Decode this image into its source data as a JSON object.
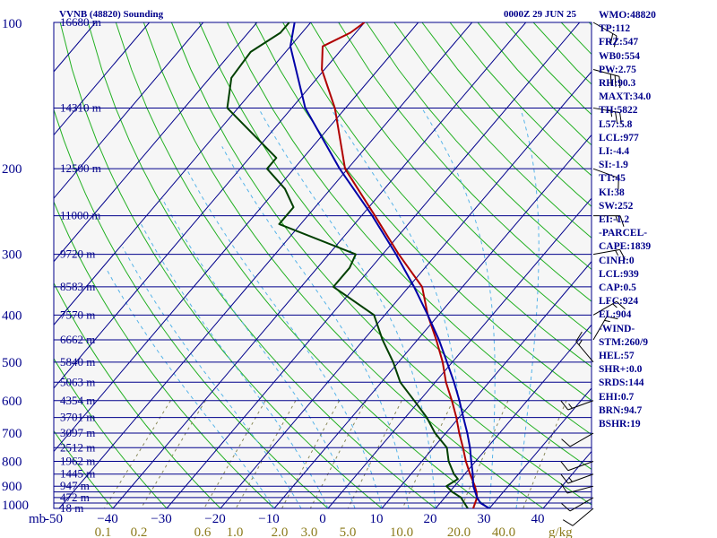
{
  "header": {
    "station": "VVNB (48820) Sounding",
    "time": "0000Z 29 JUN 25"
  },
  "stats": [
    "WMO:48820",
    "TP:112",
    "FRZ:547",
    "WB0:554",
    "PW:2.75",
    "RH:90.3",
    "MAXT:34.0",
    "TH:5822",
    "L57:5.8",
    "LCL:977",
    "LI:-4.4",
    "SI:-1.9",
    "TT:45",
    "KI:38",
    "SW:252",
    "EI:-1.2",
    "-PARCEL-",
    "CAPE:1839",
    "CINH:0",
    "LCL:939",
    "CAP:0.5",
    "LFC:924",
    "EL:904",
    "-WIND-",
    "STM:260/9",
    "HEL:57",
    "SHR+:0.0",
    "SRDS:144",
    "EHI:0.7",
    "BRN:94.7",
    "BSHR:19"
  ],
  "chart_data": {
    "type": "line",
    "title": "VVNB (48820) Sounding",
    "pressure_axis": {
      "unit_label": "mb",
      "ticks": [
        {
          "p": 100,
          "label": "100"
        },
        {
          "p": 200,
          "label": "200"
        },
        {
          "p": 300,
          "label": "300"
        },
        {
          "p": 400,
          "label": "400"
        },
        {
          "p": 500,
          "label": "500"
        },
        {
          "p": 600,
          "label": "600"
        },
        {
          "p": 700,
          "label": "700"
        },
        {
          "p": 800,
          "label": "800"
        },
        {
          "p": 900,
          "label": "900"
        },
        {
          "p": 1000,
          "label": "1000"
        }
      ]
    },
    "isobars": [
      100,
      150,
      200,
      250,
      300,
      350,
      400,
      450,
      500,
      550,
      600,
      650,
      700,
      750,
      800,
      850,
      900,
      925,
      950,
      975,
      1000
    ],
    "height_labels": [
      {
        "p": 100,
        "label": "16680 m"
      },
      {
        "p": 150,
        "label": "14310 m"
      },
      {
        "p": 200,
        "label": "12500 m"
      },
      {
        "p": 250,
        "label": "11000 m"
      },
      {
        "p": 300,
        "label": "9720 m"
      },
      {
        "p": 350,
        "label": "8583 m"
      },
      {
        "p": 400,
        "label": "7570 m"
      },
      {
        "p": 450,
        "label": "6662 m"
      },
      {
        "p": 500,
        "label": "5840 m"
      },
      {
        "p": 550,
        "label": "5063 m"
      },
      {
        "p": 600,
        "label": "4354 m"
      },
      {
        "p": 650,
        "label": "3701 m"
      },
      {
        "p": 700,
        "label": "3097 m"
      },
      {
        "p": 750,
        "label": "2512 m"
      },
      {
        "p": 800,
        "label": "1962 m"
      },
      {
        "p": 850,
        "label": "1445 m"
      },
      {
        "p": 900,
        "label": "947 m"
      },
      {
        "p": 950,
        "label": "472 m"
      },
      {
        "p": 1000,
        "label": "18 m"
      }
    ],
    "temperature_ticks": [
      {
        "t": -50,
        "label": "-50"
      },
      {
        "t": -40,
        "label": "−40"
      },
      {
        "t": -30,
        "label": "−30"
      },
      {
        "t": -20,
        "label": "−20"
      },
      {
        "t": -10,
        "label": "−10"
      },
      {
        "t": 0,
        "label": "0"
      },
      {
        "t": 10,
        "label": "10"
      },
      {
        "t": 20,
        "label": "20"
      },
      {
        "t": 30,
        "label": "30"
      },
      {
        "t": 40,
        "label": "40"
      }
    ],
    "mixing_ratio_axis": {
      "unit_label": "g/kg",
      "ticks": [
        {
          "w": 0.1,
          "label": "0.1"
        },
        {
          "w": 0.2,
          "label": "0.2"
        },
        {
          "w": 0.6,
          "label": "0.6"
        },
        {
          "w": 1.0,
          "label": "1.0"
        },
        {
          "w": 2.0,
          "label": "2.0"
        },
        {
          "w": 3.0,
          "label": "3.0"
        },
        {
          "w": 5.0,
          "label": "5.0"
        },
        {
          "w": 10.0,
          "label": "10.0"
        },
        {
          "w": 20.0,
          "label": "20.0"
        },
        {
          "w": 40.0,
          "label": "40.0"
        }
      ]
    },
    "series": [
      {
        "key": "temperature",
        "color": "#b00000",
        "points": [
          [
            1000,
            27.0
          ],
          [
            975,
            26.5
          ],
          [
            950,
            26.0
          ],
          [
            925,
            25.0
          ],
          [
            900,
            23.8
          ],
          [
            850,
            21.0
          ],
          [
            800,
            18.2
          ],
          [
            750,
            15.5
          ],
          [
            700,
            12.5
          ],
          [
            650,
            9.5
          ],
          [
            600,
            6.0
          ],
          [
            550,
            2.0
          ],
          [
            500,
            -1.8
          ],
          [
            450,
            -6.5
          ],
          [
            400,
            -12.0
          ],
          [
            350,
            -17.5
          ],
          [
            300,
            -27.0
          ],
          [
            250,
            -37.5
          ],
          [
            200,
            -50.5
          ],
          [
            150,
            -62.0
          ],
          [
            125,
            -70.5
          ],
          [
            112,
            -74.0
          ],
          [
            105,
            -71.0
          ],
          [
            100,
            -70.0
          ]
        ]
      },
      {
        "key": "dewpoint",
        "color": "#004000",
        "points": [
          [
            1000,
            26.0
          ],
          [
            975,
            24.5
          ],
          [
            950,
            23.0
          ],
          [
            925,
            20.5
          ],
          [
            900,
            18.5
          ],
          [
            870,
            19.5
          ],
          [
            850,
            18.0
          ],
          [
            800,
            15.0
          ],
          [
            750,
            12.5
          ],
          [
            700,
            8.0
          ],
          [
            650,
            4.0
          ],
          [
            600,
            -1.0
          ],
          [
            550,
            -6.5
          ],
          [
            500,
            -11.0
          ],
          [
            450,
            -16.5
          ],
          [
            400,
            -22.0
          ],
          [
            350,
            -34.0
          ],
          [
            320,
            -34.0
          ],
          [
            300,
            -35.0
          ],
          [
            260,
            -54.0
          ],
          [
            240,
            -54.0
          ],
          [
            220,
            -58.5
          ],
          [
            200,
            -65.0
          ],
          [
            190,
            -65.0
          ],
          [
            150,
            -82.0
          ],
          [
            130,
            -86.0
          ],
          [
            115,
            -86.5
          ],
          [
            105,
            -84.0
          ],
          [
            100,
            -84.0
          ]
        ]
      },
      {
        "key": "parcel",
        "color": "#0000a8",
        "points": [
          [
            1000,
            30.0
          ],
          [
            975,
            27.5
          ],
          [
            950,
            26.0
          ],
          [
            900,
            23.5
          ],
          [
            850,
            21.5
          ],
          [
            800,
            19.2
          ],
          [
            750,
            16.8
          ],
          [
            700,
            14.0
          ],
          [
            650,
            10.8
          ],
          [
            600,
            7.4
          ],
          [
            550,
            3.5
          ],
          [
            500,
            -1.0
          ],
          [
            450,
            -6.0
          ],
          [
            400,
            -12.0
          ],
          [
            350,
            -19.0
          ],
          [
            300,
            -27.5
          ],
          [
            250,
            -38.0
          ],
          [
            200,
            -51.5
          ],
          [
            150,
            -67.5
          ],
          [
            112,
            -80.0
          ],
          [
            100,
            -83.0
          ]
        ]
      }
    ],
    "wind_barbs": [
      {
        "p": 100,
        "dir": 120,
        "spd": 20
      },
      {
        "p": 125,
        "dir": 105,
        "spd": 30
      },
      {
        "p": 150,
        "dir": 100,
        "spd": 15
      },
      {
        "p": 200,
        "dir": 110,
        "spd": 10
      },
      {
        "p": 250,
        "dir": 90,
        "spd": 5
      },
      {
        "p": 300,
        "dir": 80,
        "spd": 5
      },
      {
        "p": 400,
        "dir": 60,
        "spd": 5
      },
      {
        "p": 450,
        "dir": 30,
        "spd": 5
      },
      {
        "p": 500,
        "dir": 320,
        "spd": 5
      },
      {
        "p": 600,
        "dir": 250,
        "spd": 5
      },
      {
        "p": 700,
        "dir": 240,
        "spd": 10
      },
      {
        "p": 800,
        "dir": 250,
        "spd": 10
      },
      {
        "p": 850,
        "dir": 250,
        "spd": 5
      },
      {
        "p": 900,
        "dir": 255,
        "spd": 10
      },
      {
        "p": 950,
        "dir": 240,
        "spd": 10
      },
      {
        "p": 1000,
        "dir": 230,
        "spd": 10
      }
    ]
  }
}
